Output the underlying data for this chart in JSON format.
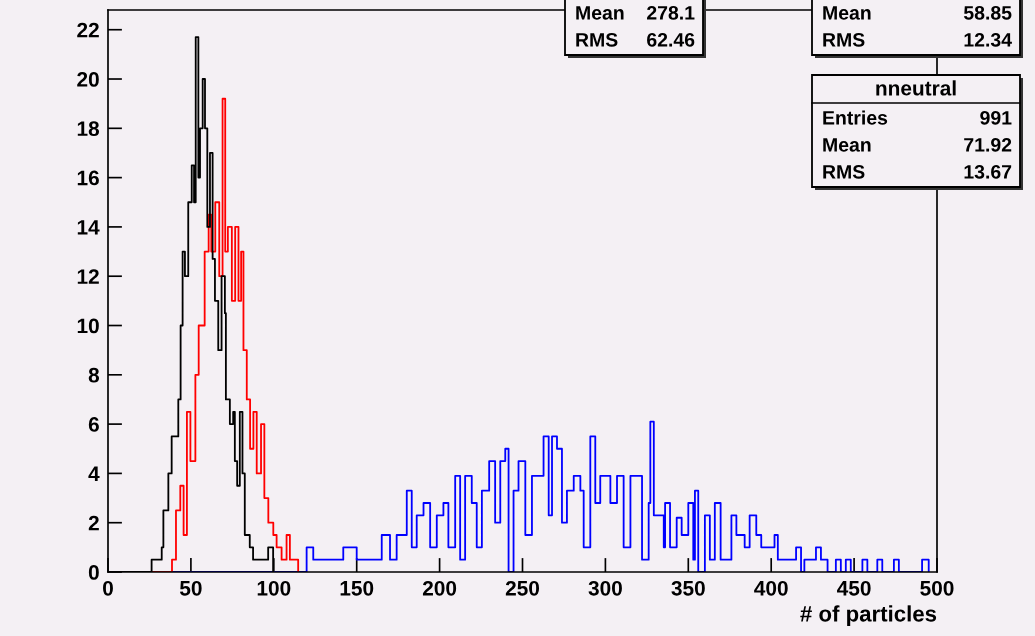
{
  "chart_data": {
    "type": "step",
    "xlabel": "# of particles",
    "xlim": [
      0,
      500
    ],
    "xticks": [
      0,
      50,
      100,
      150,
      200,
      250,
      300,
      350,
      400,
      450,
      500
    ],
    "ylim": [
      0,
      22.8
    ],
    "yticks": [
      0,
      2,
      4,
      6,
      8,
      10,
      12,
      14,
      16,
      18,
      20,
      22
    ],
    "grid": false,
    "series": [
      {
        "color": "#0000ff",
        "x": [
          0,
          119.8,
          123.8,
          131.9,
          141.9,
          150,
          165.1,
          170.1,
          174.1,
          180.2,
          183.2,
          186.2,
          190.3,
          194.3,
          198.3,
          202.3,
          205.3,
          209.4,
          212.4,
          215.4,
          219.4,
          222.4,
          225.5,
          229.9,
          233.5,
          236.6,
          239.6,
          241.6,
          244.6,
          247.6,
          251.7,
          255.7,
          259.7,
          262.7,
          265.8,
          267.8,
          270.8,
          273.8,
          276.8,
          280.9,
          284.9,
          286.9,
          290.9,
          293.9,
          296.9,
          303,
          307,
          311,
          315.1,
          320.1,
          322.1,
          326.1,
          327.1,
          329.2,
          335.2,
          336,
          339,
          343,
          346,
          350,
          353,
          354,
          356,
          360,
          363,
          366,
          369.5,
          376,
          379,
          384,
          387,
          391,
          394,
          402,
          404,
          409,
          415,
          418,
          420,
          427,
          430,
          434,
          439,
          442,
          445,
          448,
          455,
          458,
          464,
          467,
          474,
          477,
          491,
          495
        ],
        "values": [
          0,
          1,
          0.5,
          0.5,
          1,
          0.5,
          1.5,
          0.5,
          1.5,
          3.3,
          1,
          2.3,
          2.8,
          1,
          2.3,
          2.8,
          1,
          3.9,
          0.5,
          3.9,
          2.8,
          1,
          3.3,
          4.5,
          2,
          4.5,
          5,
          0,
          3.3,
          4.5,
          1.5,
          3.9,
          3.9,
          5.5,
          2.3,
          5.5,
          5,
          2,
          3.3,
          3.9,
          3.3,
          1,
          5.5,
          2.8,
          3.9,
          2.8,
          3.9,
          1,
          3.9,
          3.9,
          0.5,
          2.8,
          6.1,
          2.3,
          1,
          2.8,
          1,
          2.2,
          1.5,
          2.8,
          0.5,
          3.3,
          0,
          2.3,
          0.5,
          2.8,
          0.5,
          2.3,
          1.5,
          1,
          2.3,
          1.5,
          1,
          1.5,
          0.5,
          0.5,
          1,
          0,
          0.5,
          1,
          0.5,
          0,
          0.5,
          0,
          0.5,
          0,
          0.5,
          0,
          0.5,
          0,
          0.5,
          0,
          0.5,
          0
        ]
      },
      {
        "color": "#ff0000",
        "x": [
          0,
          38.6,
          41,
          43.6,
          45.6,
          47.6,
          49.7,
          52.7,
          54.7,
          58.3,
          60.7,
          62.3,
          64.7,
          67.1,
          69.1,
          70.7,
          72.3,
          74.7,
          76.7,
          78.7,
          80.3,
          81.7,
          83.7,
          85.7,
          87.7,
          89.7,
          92.3,
          94.3,
          96.7,
          99.7,
          101.7,
          104.7,
          107.7,
          109.7,
          112.7,
          114.7
        ],
        "values": [
          0,
          0.5,
          2.5,
          3.5,
          1.5,
          6.5,
          4.5,
          8,
          10,
          13,
          14.5,
          13,
          15,
          12,
          19.2,
          13,
          14,
          11,
          14,
          11,
          13,
          9,
          7,
          5,
          6.5,
          4,
          6,
          3,
          2,
          1.5,
          1,
          0.5,
          1.5,
          0.5,
          0.5,
          0
        ]
      },
      {
        "color": "#000000",
        "x": [
          0,
          26.3,
          32.4,
          33.4,
          36.4,
          38.4,
          42.4,
          43.8,
          45,
          46.4,
          48.4,
          50.5,
          51.9,
          52.9,
          54.5,
          55.5,
          57.1,
          58.5,
          59.9,
          61.5,
          63.1,
          64.5,
          66.5,
          68.5,
          70.5,
          71.1,
          73.5,
          75.5,
          76.5,
          77.9,
          79.5,
          81.1,
          82.5,
          85.5,
          87.5,
          91.6,
          96.6,
          99.6
        ],
        "values": [
          0,
          0.5,
          1,
          2.5,
          4,
          5.5,
          7,
          10,
          13,
          12,
          15,
          16.5,
          15,
          21.7,
          16,
          18,
          20,
          18,
          14,
          17,
          12.7,
          11,
          9,
          12,
          10.5,
          7,
          6,
          6.5,
          4.5,
          3.5,
          6.5,
          4,
          1.5,
          1,
          0.5,
          0.5,
          1,
          0
        ]
      }
    ],
    "annotations": [
      "Mean 278.1",
      "RMS 62.46",
      "Mean 58.85",
      "RMS 12.34",
      "nneutral",
      "Entries 991",
      "Mean 71.92",
      "RMS 13.67"
    ]
  }
}
